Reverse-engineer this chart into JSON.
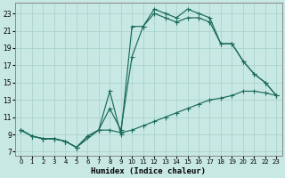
{
  "xlabel": "Humidex (Indice chaleur)",
  "xlim": [
    -0.5,
    23.5
  ],
  "ylim": [
    6.5,
    24.2
  ],
  "xticks": [
    0,
    1,
    2,
    3,
    4,
    5,
    6,
    7,
    8,
    9,
    10,
    11,
    12,
    13,
    14,
    15,
    16,
    17,
    18,
    19,
    20,
    21,
    22,
    23
  ],
  "yticks": [
    7,
    9,
    11,
    13,
    15,
    17,
    19,
    21,
    23
  ],
  "bg_color": "#c8e8e4",
  "grid_color": "#aad4cc",
  "line_color": "#1a6b5a",
  "line1_x": [
    0,
    1,
    2,
    3,
    4,
    5,
    6,
    7,
    8,
    9,
    10,
    11,
    12,
    13,
    14,
    15,
    16,
    17,
    18,
    19,
    20,
    21,
    22,
    23
  ],
  "line1_y": [
    9.5,
    8.8,
    8.5,
    8.5,
    8.2,
    7.5,
    8.8,
    9.5,
    9.5,
    9.2,
    9.5,
    10.0,
    10.5,
    11.0,
    11.5,
    12.0,
    12.5,
    13.0,
    13.2,
    13.5,
    14.0,
    14.0,
    13.8,
    13.5
  ],
  "line2_x": [
    0,
    1,
    2,
    3,
    4,
    5,
    7,
    8,
    9,
    10,
    11,
    12,
    13,
    14,
    15,
    16,
    17,
    18,
    19,
    20,
    21,
    22,
    23
  ],
  "line2_y": [
    9.5,
    8.8,
    8.5,
    8.5,
    8.2,
    7.5,
    9.5,
    14.0,
    9.0,
    21.5,
    21.5,
    23.0,
    22.5,
    22.0,
    22.5,
    22.5,
    22.0,
    19.5,
    19.5,
    17.5,
    16.0,
    15.0,
    13.5
  ],
  "line3_x": [
    0,
    1,
    2,
    3,
    4,
    5,
    6,
    7,
    8,
    9,
    10,
    11,
    12,
    13,
    14,
    15,
    16,
    17,
    18,
    19,
    20,
    21,
    22,
    23
  ],
  "line3_y": [
    9.5,
    8.8,
    8.5,
    8.5,
    8.2,
    7.5,
    8.8,
    9.5,
    12.0,
    9.5,
    18.0,
    21.5,
    23.5,
    23.0,
    22.5,
    23.5,
    23.0,
    22.5,
    19.5,
    19.5,
    17.5,
    16.0,
    15.0,
    13.5
  ]
}
